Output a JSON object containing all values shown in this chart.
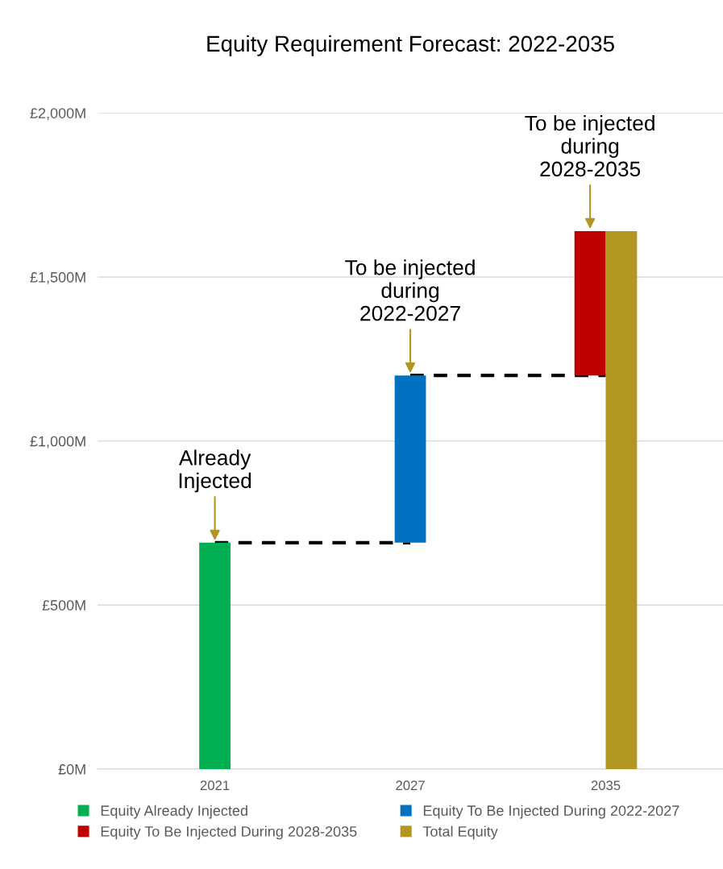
{
  "chart_data": {
    "type": "bar",
    "title": "Equity Requirement Forecast: 2022-2035",
    "categories": [
      "2021",
      "2027",
      "2035"
    ],
    "series": [
      {
        "name": "Equity Already Injected",
        "color": "#00b050",
        "values": [
          690,
          null,
          null
        ],
        "base": [
          0,
          null,
          null
        ]
      },
      {
        "name": "Equity To Be Injected During 2022-2027",
        "color": "#0070c0",
        "values": [
          null,
          510,
          null
        ],
        "base": [
          null,
          690,
          null
        ]
      },
      {
        "name": "Equity To Be Injected During 2028-2035",
        "color": "#c00000",
        "values": [
          null,
          null,
          440
        ],
        "base": [
          null,
          null,
          1200
        ]
      },
      {
        "name": "Total Equity",
        "color": "#b39522",
        "values": [
          null,
          null,
          1640
        ],
        "base": [
          null,
          null,
          0
        ]
      },
      {
        "type": "line",
        "color": "#000000",
        "line_style": "dashed",
        "values": [
          690,
          690,
          null
        ]
      },
      {
        "type": "line",
        "color": "#000000",
        "line_style": "dashed",
        "values": [
          null,
          1200,
          1200
        ]
      }
    ],
    "annotations": [
      {
        "text": "Already\nInjected",
        "x": "2021",
        "y": 690
      },
      {
        "text": "To be injected\nduring\n2022-2027",
        "x": "2027",
        "y": 1200
      },
      {
        "text": "To be injected\nduring\n2028-2035",
        "x": "2035",
        "y": 1640
      }
    ],
    "ylim": [
      0,
      2000
    ],
    "yticks": [
      {
        "value": 0,
        "label": "£0M"
      },
      {
        "value": 500,
        "label": "£500M"
      },
      {
        "value": 1000,
        "label": "£1,000M"
      },
      {
        "value": 1500,
        "label": "£1,500M"
      },
      {
        "value": 2000,
        "label": "£2,000M"
      }
    ],
    "grid": "y",
    "legend": "bottom"
  }
}
